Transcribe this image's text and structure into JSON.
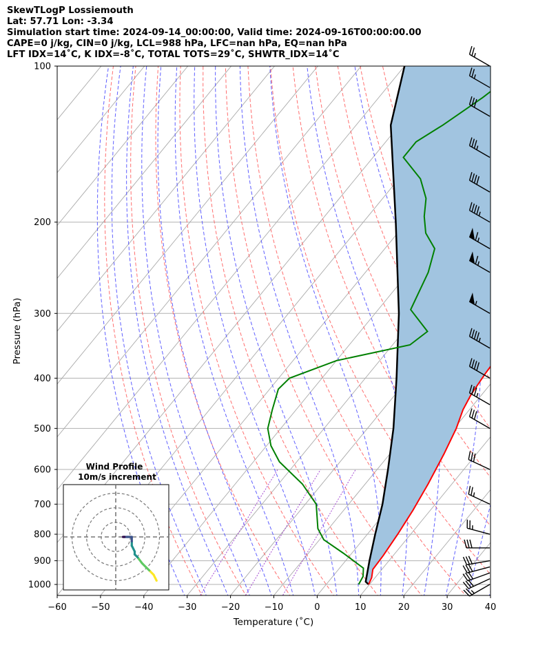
{
  "header": {
    "lines": [
      "SkewTLogP Lossiemouth",
      "Lat: 57.71   Lon: -3.34",
      "Simulation start time: 2024-09-14_00:00:00, Valid time: 2024-09-16T00:00:00.00",
      "CAPE=0 j/kg, CIN=0 j/kg, LCL=988 hPa, LFC=nan hPa, EQ=nan hPa",
      "LFT IDX=14˚C, K IDX=-8˚C, TOTAL TOTS=29˚C, SHWTR_IDX=14˚C"
    ]
  },
  "chart_data": {
    "type": "line",
    "subtype": "skew-t log-p",
    "xlabel": "Temperature (˚C)",
    "ylabel": "Pressure (hPa)",
    "xlim": [
      -60,
      40
    ],
    "ylim": [
      1050,
      100
    ],
    "y_scale": "log",
    "x_ticks": [
      -60,
      -50,
      -40,
      -30,
      -20,
      -10,
      0,
      10,
      20,
      30,
      40
    ],
    "x_tick_labels": [
      "−60",
      "−50",
      "−40",
      "−30",
      "−20",
      "−10",
      "0",
      "10",
      "20",
      "30",
      "40"
    ],
    "y_ticks": [
      1000,
      900,
      800,
      700,
      600,
      500,
      400,
      300,
      200,
      100
    ],
    "y_tick_labels": [
      "1000",
      "900",
      "800",
      "700",
      "600",
      "500",
      "400",
      "300",
      "200",
      "100"
    ],
    "grid": true,
    "colors": {
      "temperature": "#ff0000",
      "dewpoint": "#008000",
      "parcel": "#000000",
      "shade": "#a1c4e0",
      "dry_adiabats": "#ff5555",
      "moist_adiabats": "#4d4dff",
      "mixing_ratio": "#9933cc",
      "isotherms": "#aaaaaa"
    },
    "series": [
      {
        "key": "temperature",
        "points": [
          [
            9.8,
            1000
          ],
          [
            9.2,
            970
          ],
          [
            7.9,
            935
          ],
          [
            7.7,
            880
          ],
          [
            7.0,
            800
          ],
          [
            6.0,
            720
          ],
          [
            4.5,
            640
          ],
          [
            2.5,
            560
          ],
          [
            0.5,
            500
          ],
          [
            -1.5,
            460
          ],
          [
            -2.5,
            430
          ],
          [
            -3.2,
            390
          ],
          [
            -3.5,
            360
          ],
          [
            -4.5,
            330
          ],
          [
            -6.0,
            305
          ],
          [
            -8.5,
            275
          ],
          [
            -12.0,
            245
          ],
          [
            -15.5,
            215
          ],
          [
            -20.5,
            200
          ],
          [
            -22.0,
            190
          ],
          [
            -24.5,
            170
          ],
          [
            -28.5,
            150
          ],
          [
            -32.0,
            130
          ],
          [
            -36.0,
            115
          ],
          [
            -40.0,
            100
          ]
        ]
      },
      {
        "key": "dewpoint",
        "points": [
          [
            7.5,
            1000
          ],
          [
            7.0,
            965
          ],
          [
            5.5,
            930
          ],
          [
            -2.0,
            870
          ],
          [
            -9.0,
            820
          ],
          [
            -12.5,
            780
          ],
          [
            -17.5,
            700
          ],
          [
            -24.5,
            640
          ],
          [
            -34.0,
            580
          ],
          [
            -39.0,
            540
          ],
          [
            -43.0,
            500
          ],
          [
            -45.5,
            460
          ],
          [
            -48.0,
            420
          ],
          [
            -47.5,
            400
          ],
          [
            -40.0,
            370
          ],
          [
            -26.0,
            345
          ],
          [
            -24.5,
            325
          ],
          [
            -32.5,
            295
          ],
          [
            -35.5,
            250
          ],
          [
            -38.5,
            225
          ],
          [
            -43.5,
            210
          ],
          [
            -47.0,
            195
          ],
          [
            -50.0,
            180
          ],
          [
            -55.0,
            165
          ],
          [
            -63.0,
            150
          ],
          [
            -63.0,
            140
          ],
          [
            -60.0,
            130
          ],
          [
            -56.0,
            115
          ],
          [
            -52.5,
            100
          ]
        ]
      },
      {
        "key": "parcel",
        "points": [
          [
            9.8,
            1000
          ],
          [
            8.6,
            988
          ],
          [
            5.5,
            900
          ],
          [
            1.8,
            800
          ],
          [
            -2.2,
            700
          ],
          [
            -7.5,
            600
          ],
          [
            -14.0,
            500
          ],
          [
            -22.8,
            400
          ],
          [
            -34.5,
            300
          ],
          [
            -52.5,
            200
          ],
          [
            -72.0,
            130
          ],
          [
            -80.0,
            100
          ]
        ]
      }
    ],
    "wind_barbs": [
      {
        "pressure": 1000,
        "speed_kt": 25,
        "dir_deg": 240
      },
      {
        "pressure": 975,
        "speed_kt": 30,
        "dir_deg": 245
      },
      {
        "pressure": 950,
        "speed_kt": 30,
        "dir_deg": 250
      },
      {
        "pressure": 925,
        "speed_kt": 30,
        "dir_deg": 255
      },
      {
        "pressure": 900,
        "speed_kt": 30,
        "dir_deg": 260
      },
      {
        "pressure": 850,
        "speed_kt": 30,
        "dir_deg": 270
      },
      {
        "pressure": 800,
        "speed_kt": 25,
        "dir_deg": 285
      },
      {
        "pressure": 700,
        "speed_kt": 25,
        "dir_deg": 295
      },
      {
        "pressure": 600,
        "speed_kt": 30,
        "dir_deg": 295
      },
      {
        "pressure": 500,
        "speed_kt": 30,
        "dir_deg": 300
      },
      {
        "pressure": 450,
        "speed_kt": 35,
        "dir_deg": 300
      },
      {
        "pressure": 400,
        "speed_kt": 40,
        "dir_deg": 300
      },
      {
        "pressure": 350,
        "speed_kt": 45,
        "dir_deg": 300
      },
      {
        "pressure": 300,
        "speed_kt": 55,
        "dir_deg": 300
      },
      {
        "pressure": 250,
        "speed_kt": 65,
        "dir_deg": 300
      },
      {
        "pressure": 225,
        "speed_kt": 65,
        "dir_deg": 300
      },
      {
        "pressure": 200,
        "speed_kt": 45,
        "dir_deg": 300
      },
      {
        "pressure": 175,
        "speed_kt": 40,
        "dir_deg": 300
      },
      {
        "pressure": 150,
        "speed_kt": 35,
        "dir_deg": 300
      },
      {
        "pressure": 125,
        "speed_kt": 30,
        "dir_deg": 300
      },
      {
        "pressure": 110,
        "speed_kt": 25,
        "dir_deg": 300
      },
      {
        "pressure": 100,
        "speed_kt": 25,
        "dir_deg": 300
      }
    ],
    "hodograph": {
      "title": "Wind Profile",
      "subtitle": "10m/s increment",
      "rings_ms": [
        10,
        20,
        30
      ],
      "range_ms": 30,
      "points_uv": [
        [
          28,
          -30
        ],
        [
          26,
          -26
        ],
        [
          23,
          -23
        ],
        [
          21,
          -21
        ],
        [
          18,
          -18
        ],
        [
          15,
          -14
        ],
        [
          13,
          -12
        ],
        [
          13,
          -10
        ],
        [
          11,
          -6
        ],
        [
          11,
          -3
        ],
        [
          11,
          0
        ],
        [
          8,
          0
        ],
        [
          6,
          0
        ],
        [
          5,
          0
        ]
      ],
      "colormap": [
        "#2c0a4a",
        "#3b528b",
        "#21918c",
        "#5ec962",
        "#fde725"
      ]
    }
  }
}
